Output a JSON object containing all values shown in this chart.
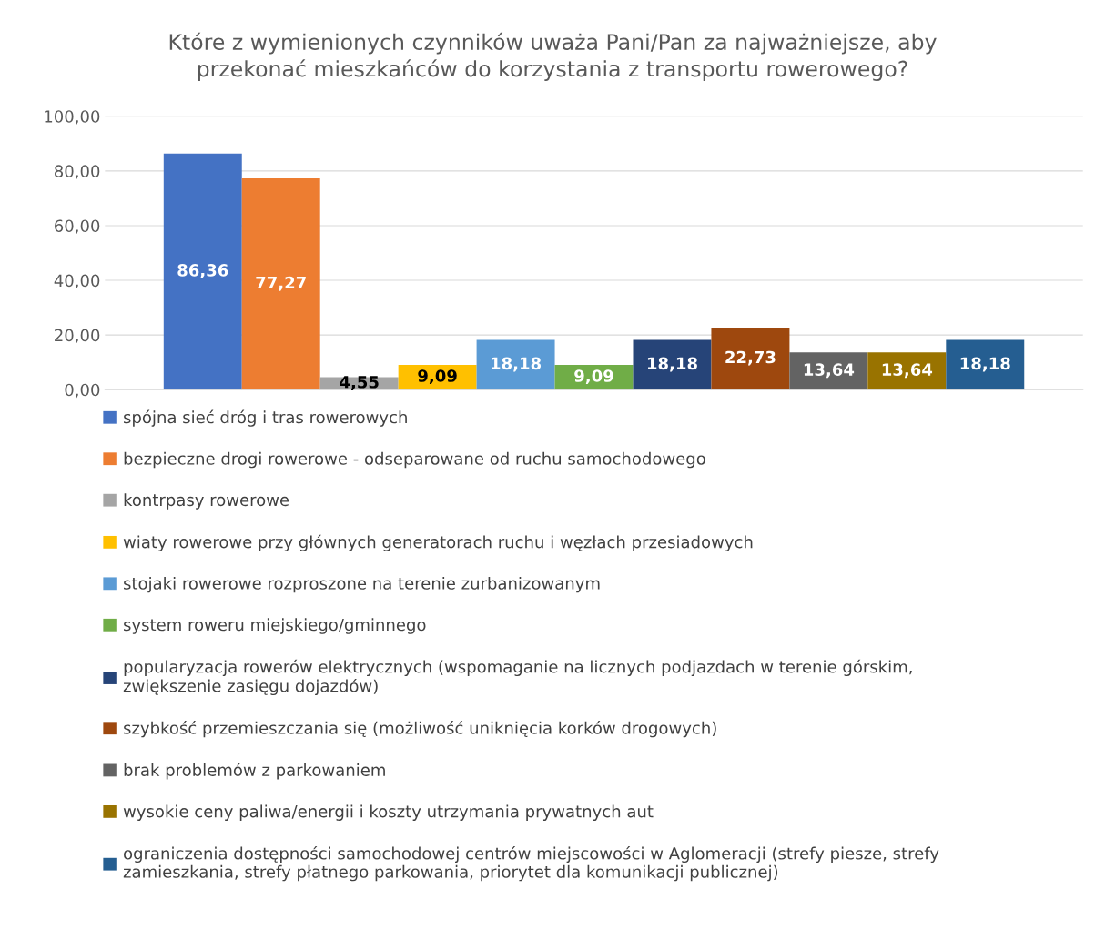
{
  "chart_data": {
    "type": "bar",
    "title": "Które z wymienionych czynników uważa Pani/Pan za najważniejsze, aby przekonać mieszkańców do korzystania z transportu rowerowego?",
    "categories": [
      null
    ],
    "series": [
      {
        "name": "spójna sieć dróg i tras rowerowych",
        "color": "#4472c4",
        "values": [
          86.36
        ],
        "value_labels": [
          "86,36"
        ]
      },
      {
        "name": "bezpieczne drogi rowerowe - odseparowane od ruchu samochodowego",
        "color": "#ed7d31",
        "values": [
          77.27
        ],
        "value_labels": [
          "77,27"
        ]
      },
      {
        "name": "kontrpasy rowerowe",
        "color": "#a5a5a5",
        "values": [
          4.55
        ],
        "value_labels": [
          "4,55"
        ]
      },
      {
        "name": "wiaty rowerowe przy głównych generatorach ruchu i węzłach przesiadowych",
        "color": "#ffc000",
        "values": [
          9.09
        ],
        "value_labels": [
          "9,09"
        ]
      },
      {
        "name": "stojaki rowerowe rozproszone na terenie zurbanizowanym",
        "color": "#5b9bd5",
        "values": [
          18.18
        ],
        "value_labels": [
          "18,18"
        ]
      },
      {
        "name": "system roweru miejskiego/gminnego",
        "color": "#70ad47",
        "values": [
          9.09
        ],
        "value_labels": [
          "9,09"
        ]
      },
      {
        "name": "popularyzacja rowerów elektrycznych (wspomaganie na licznych podjazdach w terenie górskim, zwiększenie zasięgu dojazdów)",
        "color": "#264478",
        "values": [
          18.18
        ],
        "value_labels": [
          "18,18"
        ]
      },
      {
        "name": "szybkość przemieszczania się (możliwość uniknięcia korków drogowych)",
        "color": "#9e480e",
        "values": [
          22.73
        ],
        "value_labels": [
          "22,73"
        ]
      },
      {
        "name": "brak problemów z parkowaniem",
        "color": "#636363",
        "values": [
          13.64
        ],
        "value_labels": [
          "13,64"
        ]
      },
      {
        "name": "wysokie ceny paliwa/energii i koszty utrzymania prywatnych aut",
        "color": "#997300",
        "values": [
          13.64
        ],
        "value_labels": [
          "13,64"
        ]
      },
      {
        "name": "ograniczenia dostępności samochodowej centrów miejscowości w Aglomeracji (strefy piesze, strefy zamieszkania, strefy płatnego parkowania, priorytet dla komunikacji publicznej)",
        "color": "#255e91",
        "values": [
          18.18
        ],
        "value_labels": [
          "18,18"
        ]
      }
    ],
    "ylim": [
      0,
      100
    ],
    "yticks": [
      {
        "value": 0,
        "label": "0,00"
      },
      {
        "value": 20,
        "label": "20,00"
      },
      {
        "value": 40,
        "label": "40,00"
      },
      {
        "value": 60,
        "label": "60,00"
      },
      {
        "value": 80,
        "label": "80,00"
      },
      {
        "value": 100,
        "label": "100,00"
      }
    ],
    "grid": "y",
    "legend": "bottom"
  }
}
